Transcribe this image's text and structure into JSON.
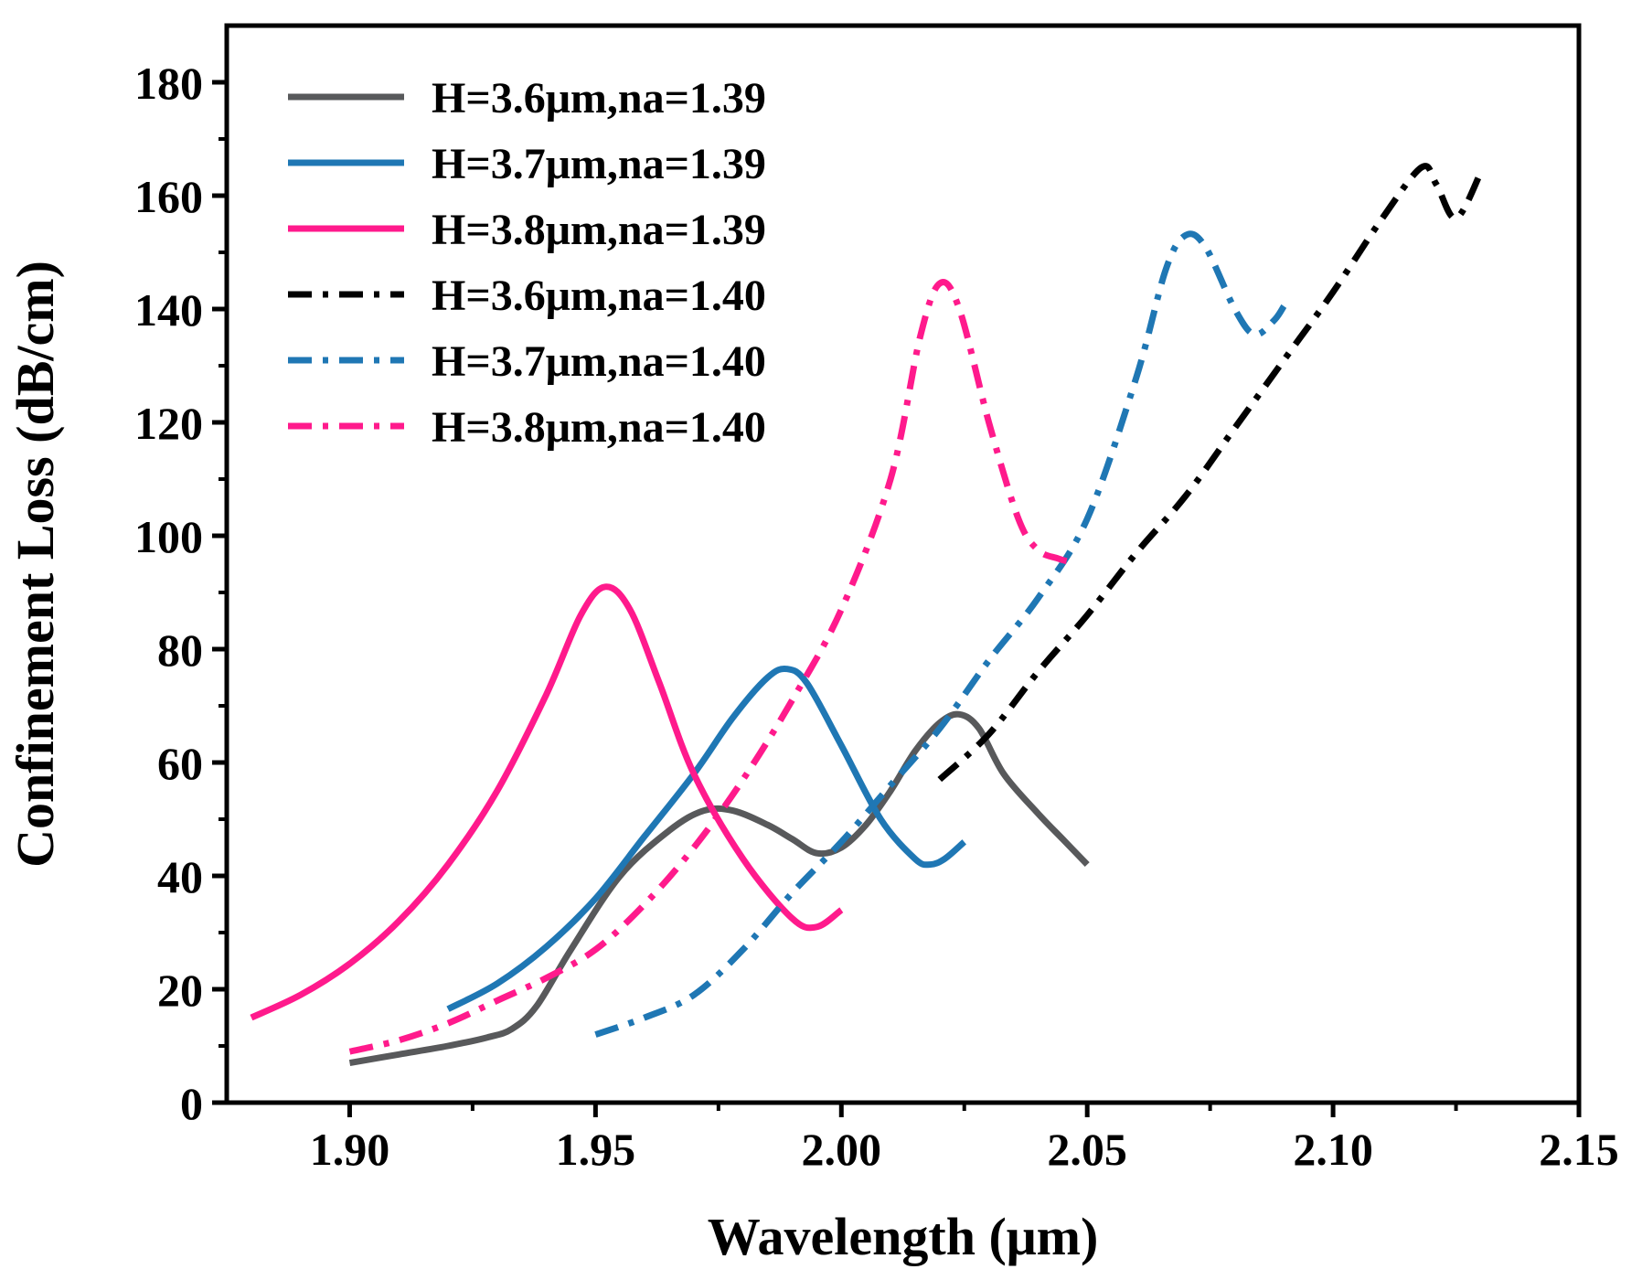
{
  "chart_data": {
    "type": "line",
    "title": "",
    "xlabel": "Wavelength (μm)",
    "ylabel": "Confinement Loss (dB/cm)",
    "xlim": [
      1.875,
      2.15
    ],
    "ylim": [
      0,
      190
    ],
    "x_ticks": [
      1.9,
      1.95,
      2.0,
      2.05,
      2.1,
      2.15
    ],
    "x_tick_labels": [
      "1.90",
      "1.95",
      "2.00",
      "2.05",
      "2.10",
      "2.15"
    ],
    "y_ticks": [
      0,
      20,
      40,
      60,
      80,
      100,
      120,
      140,
      160,
      180
    ],
    "y_tick_labels": [
      "0",
      "20",
      "40",
      "60",
      "80",
      "100",
      "120",
      "140",
      "160",
      "180"
    ],
    "grid": false,
    "legend_position": "top-left",
    "series": [
      {
        "name": "H=3.6μm,na=1.39",
        "color": "#58595b",
        "style": "solid",
        "x": [
          1.9,
          1.91,
          1.92,
          1.928,
          1.933,
          1.938,
          1.945,
          1.955,
          1.965,
          1.972,
          1.978,
          1.985,
          1.99,
          1.995,
          2.0,
          2.005,
          2.01,
          2.015,
          2.02,
          2.024,
          2.028,
          2.033,
          2.04,
          2.045,
          2.05
        ],
        "y": [
          7,
          8.5,
          10,
          11.5,
          13,
          17,
          27,
          40,
          48,
          51.5,
          51.5,
          49,
          46.5,
          44,
          45,
          49,
          55,
          62,
          67,
          68.5,
          66,
          58,
          51,
          46.5,
          42
        ]
      },
      {
        "name": "H=3.7μm,na=1.39",
        "color": "#1f77b4",
        "style": "solid",
        "x": [
          1.92,
          1.93,
          1.94,
          1.95,
          1.96,
          1.97,
          1.978,
          1.985,
          1.989,
          1.993,
          2.0,
          2.008,
          2.015,
          2.018,
          2.021,
          2.025
        ],
        "y": [
          16.5,
          21,
          27.5,
          36,
          47,
          58,
          68,
          75,
          76.5,
          74,
          63,
          50,
          43,
          42,
          43,
          46
        ]
      },
      {
        "name": "H=3.8μm,na=1.39",
        "color": "#ff1a8c",
        "style": "solid",
        "x": [
          1.88,
          1.89,
          1.9,
          1.91,
          1.92,
          1.93,
          1.94,
          1.947,
          1.952,
          1.957,
          1.963,
          1.97,
          1.98,
          1.99,
          1.995,
          2.0
        ],
        "y": [
          15,
          19,
          24.5,
          32,
          42,
          55,
          72,
          86,
          91,
          87,
          74,
          58,
          43,
          32.5,
          31,
          34
        ]
      },
      {
        "name": "H=3.6μm,na=1.40",
        "color": "#000000",
        "style": "dashdot",
        "x": [
          2.02,
          2.03,
          2.04,
          2.05,
          2.06,
          2.07,
          2.08,
          2.09,
          2.1,
          2.11,
          2.118,
          2.121,
          2.125,
          2.13
        ],
        "y": [
          57,
          65,
          76,
          86,
          97,
          107,
          119,
          131,
          143,
          156,
          165,
          162,
          156,
          164
        ]
      },
      {
        "name": "H=3.7μm,na=1.40",
        "color": "#1f77b4",
        "style": "dashdot",
        "x": [
          1.95,
          1.96,
          1.97,
          1.98,
          1.99,
          2.0,
          2.01,
          2.02,
          2.03,
          2.04,
          2.05,
          2.06,
          2.066,
          2.07,
          2.074,
          2.08,
          2.084,
          2.088,
          2.09
        ],
        "y": [
          12,
          15,
          19,
          27,
          37,
          46,
          56,
          66,
          78,
          89,
          103,
          128,
          147,
          153,
          151,
          140,
          135.5,
          138,
          140.5
        ]
      },
      {
        "name": "H=3.8μm,na=1.40",
        "color": "#ff1a8c",
        "style": "dashdot",
        "x": [
          1.9,
          1.91,
          1.92,
          1.93,
          1.94,
          1.95,
          1.96,
          1.97,
          1.98,
          1.99,
          2.0,
          2.01,
          2.016,
          2.02,
          2.024,
          2.03,
          2.036,
          2.04,
          2.044,
          2.046
        ],
        "y": [
          9,
          11,
          14,
          18,
          22,
          27,
          35,
          45,
          57,
          71,
          87,
          110,
          135,
          144.5,
          140,
          120,
          103,
          97.5,
          96,
          95.5
        ]
      }
    ]
  }
}
